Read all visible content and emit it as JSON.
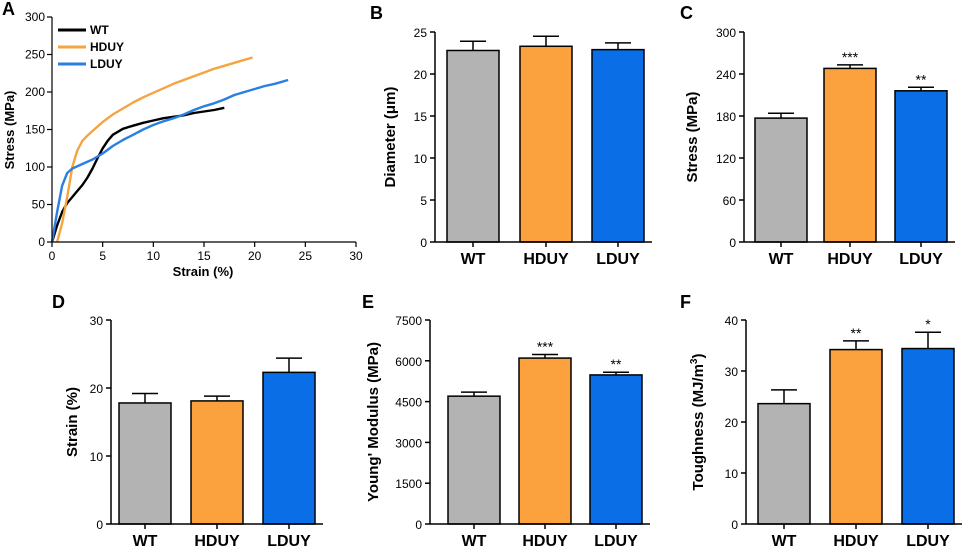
{
  "colors": {
    "WT": "#b3b3b3",
    "HDUY": "#fba23f",
    "LDUY": "#0a6fe6",
    "WT_line": "#000000",
    "HDUY_line": "#f5a443",
    "LDUY_line": "#2b7ee2"
  },
  "chart_data": [
    {
      "id": "A",
      "type": "line",
      "letter": "A",
      "xlabel": "Strain (%)",
      "ylabel": "Stress (MPa)",
      "xlim": [
        0,
        30
      ],
      "ylim": [
        0,
        300
      ],
      "xticks": [
        "0",
        "5",
        "10",
        "15",
        "20",
        "25",
        "30"
      ],
      "yticks": [
        "0",
        "50",
        "100",
        "150",
        "200",
        "250",
        "300"
      ],
      "legend": [
        "WT",
        "HDUY",
        "LDUY"
      ],
      "series": [
        {
          "name": "WT",
          "color": "#000000",
          "x": [
            0,
            0.5,
            1,
            1.5,
            2,
            2.5,
            3,
            3.5,
            4,
            4.5,
            5,
            5.5,
            6,
            7,
            8,
            9,
            10,
            11,
            12,
            13,
            14,
            15,
            16,
            17
          ],
          "y": [
            0,
            22,
            40,
            52,
            60,
            68,
            76,
            86,
            98,
            112,
            125,
            135,
            143,
            151,
            155,
            159,
            162,
            165,
            167,
            169,
            172,
            174,
            176,
            179
          ]
        },
        {
          "name": "HDUY",
          "color": "#f5a443",
          "x": [
            0.5,
            1,
            1.5,
            2,
            2.5,
            3,
            3.5,
            4,
            5,
            6,
            7,
            8,
            9,
            10,
            11,
            12,
            13,
            14,
            15,
            16,
            17,
            18,
            19,
            19.8
          ],
          "y": [
            0,
            25,
            60,
            100,
            122,
            135,
            142,
            148,
            160,
            170,
            178,
            186,
            193,
            199,
            205,
            211,
            216,
            221,
            226,
            231,
            235,
            239,
            243,
            246
          ]
        },
        {
          "name": "LDUY",
          "color": "#2b7ee2",
          "x": [
            0,
            0.5,
            1,
            1.5,
            2,
            3,
            4,
            5,
            6,
            7,
            8,
            9,
            10,
            11,
            12,
            13,
            14,
            15,
            16,
            17,
            18,
            19,
            20,
            21,
            22,
            23.3
          ],
          "y": [
            0,
            40,
            75,
            92,
            98,
            104,
            110,
            118,
            128,
            136,
            143,
            150,
            156,
            161,
            165,
            170,
            176,
            181,
            185,
            190,
            196,
            200,
            204,
            208,
            211,
            216
          ]
        }
      ]
    },
    {
      "id": "B",
      "type": "bar",
      "letter": "B",
      "categories": [
        "WT",
        "HDUY",
        "LDUY"
      ],
      "values": [
        22.8,
        23.3,
        22.9
      ],
      "errors": [
        1.1,
        1.2,
        0.8
      ],
      "ylabel": "Diameter (μm)",
      "ylim": [
        0,
        25
      ],
      "yticks": [
        "0",
        "5",
        "10",
        "15",
        "20",
        "25"
      ],
      "significance": [
        "",
        "",
        ""
      ]
    },
    {
      "id": "C",
      "type": "bar",
      "letter": "C",
      "categories": [
        "WT",
        "HDUY",
        "LDUY"
      ],
      "values": [
        177,
        248,
        216
      ],
      "errors": [
        7,
        5,
        5
      ],
      "ylabel": "Stress (MPa)",
      "ylim": [
        0,
        300
      ],
      "yticks": [
        "0",
        "60",
        "120",
        "180",
        "240",
        "300"
      ],
      "significance": [
        "",
        "***",
        "**"
      ]
    },
    {
      "id": "D",
      "type": "bar",
      "letter": "D",
      "categories": [
        "WT",
        "HDUY",
        "LDUY"
      ],
      "values": [
        17.8,
        18.1,
        22.3
      ],
      "errors": [
        1.4,
        0.7,
        2.1
      ],
      "ylabel": "Strain (%)",
      "ylim": [
        0,
        30
      ],
      "yticks": [
        "0",
        "10",
        "20",
        "30"
      ],
      "significance": [
        "",
        "",
        ""
      ]
    },
    {
      "id": "E",
      "type": "bar",
      "letter": "E",
      "categories": [
        "WT",
        "HDUY",
        "LDUY"
      ],
      "values": [
        4700,
        6100,
        5480
      ],
      "errors": [
        150,
        130,
        100
      ],
      "ylabel": "Young' Modulus (MPa)",
      "ylim": [
        0,
        7500
      ],
      "yticks": [
        "0",
        "1500",
        "3000",
        "4500",
        "6000",
        "7500"
      ],
      "significance": [
        "",
        "***",
        "**"
      ]
    },
    {
      "id": "F",
      "type": "bar",
      "letter": "F",
      "categories": [
        "WT",
        "HDUY",
        "LDUY"
      ],
      "values": [
        23.6,
        34.2,
        34.4
      ],
      "errors": [
        2.7,
        1.7,
        3.2
      ],
      "ylabel_main": "Toughness (MJ/m",
      "ylabel_sup": "3",
      "ylabel_end": ")",
      "ylim": [
        0,
        40
      ],
      "yticks": [
        "0",
        "10",
        "20",
        "30",
        "40"
      ],
      "significance": [
        "",
        "**",
        "*"
      ]
    }
  ]
}
